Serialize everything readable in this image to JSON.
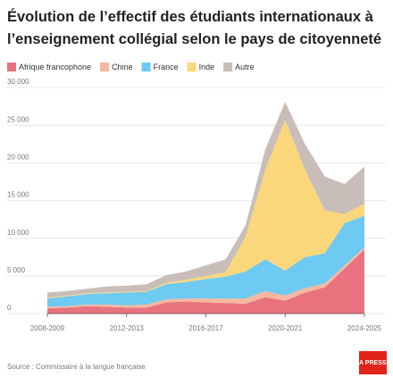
{
  "chart_data": {
    "type": "stacked-area",
    "title": "Évolution de l’effectif des étudiants internationaux à l’enseignement collégial selon le pays de citoyenneté",
    "source": "Source : Commissaire à la langue française",
    "logo": "LA PRESSE",
    "categories": [
      "2008-2009",
      null,
      null,
      null,
      "2012-2013",
      null,
      null,
      null,
      "2016-2017",
      null,
      null,
      null,
      "2020-2021",
      null,
      null,
      null,
      "2024-2025"
    ],
    "series": [
      {
        "name": "Afrique francophone",
        "color": "#e8737e",
        "values": [
          700,
          800,
          1000,
          900,
          800,
          800,
          1500,
          1600,
          1500,
          1400,
          1300,
          2200,
          1700,
          2800,
          3500,
          6000,
          8500
        ]
      },
      {
        "name": "Chine",
        "color": "#f6b89f",
        "values": [
          200,
          200,
          200,
          300,
          300,
          400,
          400,
          400,
          500,
          600,
          700,
          800,
          700,
          600,
          500,
          400,
          300
        ]
      },
      {
        "name": "France",
        "color": "#6ecaf2",
        "values": [
          1100,
          1300,
          1400,
          1500,
          1700,
          1700,
          2000,
          2200,
          2600,
          2900,
          3600,
          4200,
          3300,
          4100,
          4000,
          5600,
          4200
        ]
      },
      {
        "name": "Inde",
        "color": "#fbd77c",
        "values": [
          100,
          100,
          100,
          100,
          100,
          100,
          200,
          300,
          400,
          600,
          4600,
          11900,
          20000,
          11600,
          5700,
          1200,
          1600
        ]
      },
      {
        "name": "Autre",
        "color": "#c9bdb8",
        "values": [
          700,
          600,
          600,
          800,
          800,
          900,
          1000,
          1100,
          1400,
          1700,
          1500,
          2700,
          2400,
          3400,
          4500,
          4000,
          4900
        ]
      }
    ],
    "ylim": [
      0,
      30000
    ],
    "yticks": [
      0,
      {
        "value": 5000,
        "label": "5 000"
      },
      {
        "value": 10000,
        "label": "10 000"
      },
      {
        "value": 15000,
        "label": "15 000"
      },
      {
        "value": 20000,
        "label": "20 000"
      },
      {
        "value": 25000,
        "label": "25 000"
      },
      {
        "value": 30000,
        "label": "30 000"
      }
    ],
    "grid": true
  }
}
